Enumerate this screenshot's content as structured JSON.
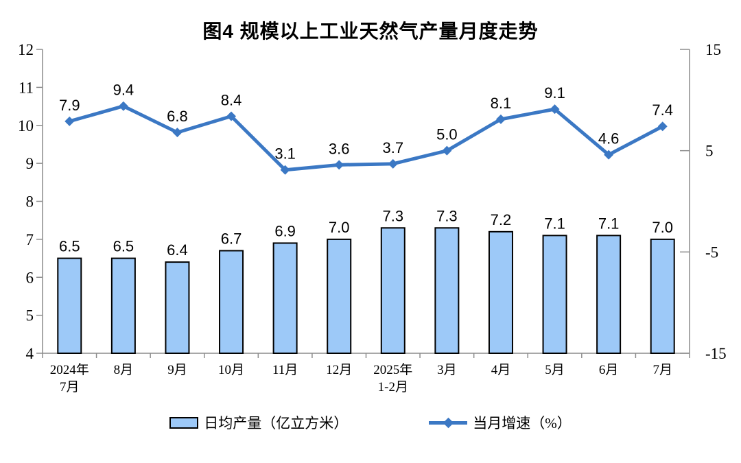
{
  "chart_data": {
    "type": "bar",
    "title": "图4  规模以上工业天然气产量月度走势",
    "categories": [
      "2024年\n7月",
      "8月",
      "9月",
      "10月",
      "11月",
      "12月",
      "2025年\n1-2月",
      "3月",
      "4月",
      "5月",
      "6月",
      "7月"
    ],
    "series": [
      {
        "name": "日均产量（亿立方米）",
        "type": "bar",
        "axis": "left",
        "values": [
          6.5,
          6.5,
          6.4,
          6.7,
          6.9,
          7.0,
          7.3,
          7.3,
          7.2,
          7.1,
          7.1,
          7.0
        ]
      },
      {
        "name": "当月增速（%）",
        "type": "line",
        "axis": "right",
        "values": [
          7.9,
          9.4,
          6.8,
          8.4,
          3.1,
          3.6,
          3.7,
          5.0,
          8.1,
          9.1,
          4.6,
          7.4
        ]
      }
    ],
    "left_axis": {
      "min": 4,
      "max": 12,
      "ticks": [
        4,
        5,
        6,
        7,
        8,
        9,
        10,
        11,
        12
      ]
    },
    "right_axis": {
      "min": -15,
      "max": 15,
      "ticks": [
        -15,
        -5,
        5,
        15
      ]
    },
    "grid": false,
    "legend_position": "bottom",
    "colors": {
      "bar_fill": "#9DC9F8",
      "bar_border": "#000000",
      "line": "#3B78C4",
      "axis": "#8C8C8C",
      "text": "#000000"
    }
  }
}
